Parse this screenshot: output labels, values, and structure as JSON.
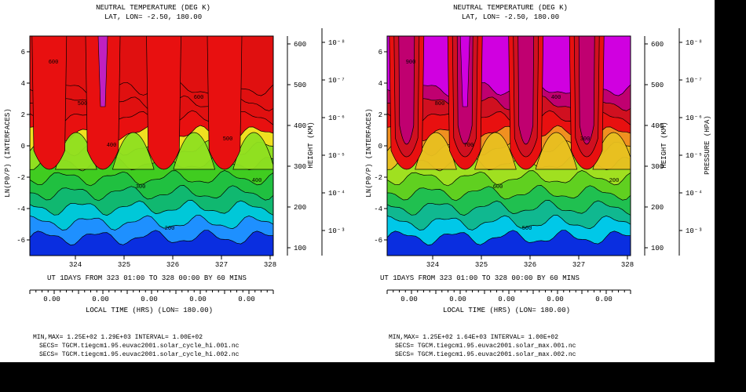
{
  "colors": {
    "band_left": [
      "#0a2ee0",
      "#1e90ff",
      "#00c8d8",
      "#10b870",
      "#20c040",
      "#40cc20",
      "#90e020",
      "#f0e020",
      "#e81010",
      "#e01010",
      "#e01010",
      "#e01010"
    ],
    "band_right": [
      "#0a2ee0",
      "#00c8e8",
      "#10b890",
      "#20c050",
      "#60d020",
      "#a0e020",
      "#e8c020",
      "#f09020",
      "#e81010",
      "#d01020",
      "#c00070",
      "#d000e0"
    ],
    "peak": "#c020c0"
  },
  "chart_data": [
    {
      "type": "heatmap",
      "title": "NEUTRAL TEMPERATURE (DEG K)",
      "subtitle": "LAT, LON= -2.50, 180.00",
      "ylabel": "LN(P0/P) (INTERFACES)",
      "ylim": [
        -7,
        7
      ],
      "y_ticks": [
        "6",
        "4",
        "2",
        "0",
        "-2",
        "-4",
        "-6"
      ],
      "x_ticks": [
        "324",
        "325",
        "326",
        "327",
        "328"
      ],
      "xlabel_line": "UT  1DAYS  FROM 323 01:00 TO 328 00:00 BY     60 MINS",
      "lt_ticks": [
        "0.00",
        "0.00",
        "0.00",
        "0.00",
        "0.00"
      ],
      "lt_label": "LOCAL TIME (HRS) (LON= 180.00)",
      "right_ticks_height": [
        "600",
        "500",
        "400",
        "300",
        "200",
        "100"
      ],
      "right_label_height": "HEIGHT (KM)",
      "right_ticks_pressure": [
        "10⁻⁸",
        "10⁻⁷",
        "10⁻⁶",
        "10⁻⁵",
        "10⁻⁴",
        "10⁻³"
      ],
      "right_label_pressure": "PRESSURE (HPA)",
      "contour_labels": [
        "600",
        "500",
        "400",
        "300",
        "200",
        "600",
        "500",
        "400"
      ],
      "footer": [
        "MIN,MAX= 1.25E+02  1.29E+03 INTERVAL= 1.00E+02",
        "SECS= TGCM.tiegcm1.95.euvac2001.solar_cycle_hi.001.nc",
        "SECS= TGCM.tiegcm1.95.euvac2001.solar_cycle_hi.002.nc"
      ]
    },
    {
      "type": "heatmap",
      "title": "NEUTRAL TEMPERATURE (DEG K)",
      "subtitle": "LAT, LON= -2.50, 180.00",
      "ylabel": "LN(P0/P) (INTERFACES)",
      "ylim": [
        -7,
        7
      ],
      "y_ticks": [
        "6",
        "4",
        "2",
        "0",
        "-2",
        "-4",
        "-6"
      ],
      "x_ticks": [
        "324",
        "325",
        "326",
        "327",
        "328"
      ],
      "xlabel_line": "UT  1DAYS  FROM 323 01:00 TO 328 00:00 BY     60 MINS",
      "lt_ticks": [
        "0.00",
        "0.00",
        "0.00",
        "0.00",
        "0.00"
      ],
      "lt_label": "LOCAL TIME (HRS) (LON= 180.00)",
      "right_ticks_height": [
        "600",
        "500",
        "400",
        "300",
        "200",
        "100"
      ],
      "right_label_height": "HEIGHT (KM)",
      "right_ticks_pressure": [
        "10⁻⁸",
        "10⁻⁷",
        "10⁻⁶",
        "10⁻⁵",
        "10⁻⁴",
        "10⁻³"
      ],
      "right_label_pressure": "PRESSURE (HPA)",
      "contour_labels": [
        "900",
        "800",
        "700",
        "600",
        "500",
        "400",
        "300",
        "200"
      ],
      "footer": [
        "MIN,MAX= 1.25E+02  1.64E+03 INTERVAL= 1.00E+02",
        "SECS= TGCM.tiegcm1.95.euvac2001.solar_max.001.nc",
        "SECS= TGCM.tiegcm1.95.euvac2001.solar_max.002.nc"
      ]
    }
  ]
}
